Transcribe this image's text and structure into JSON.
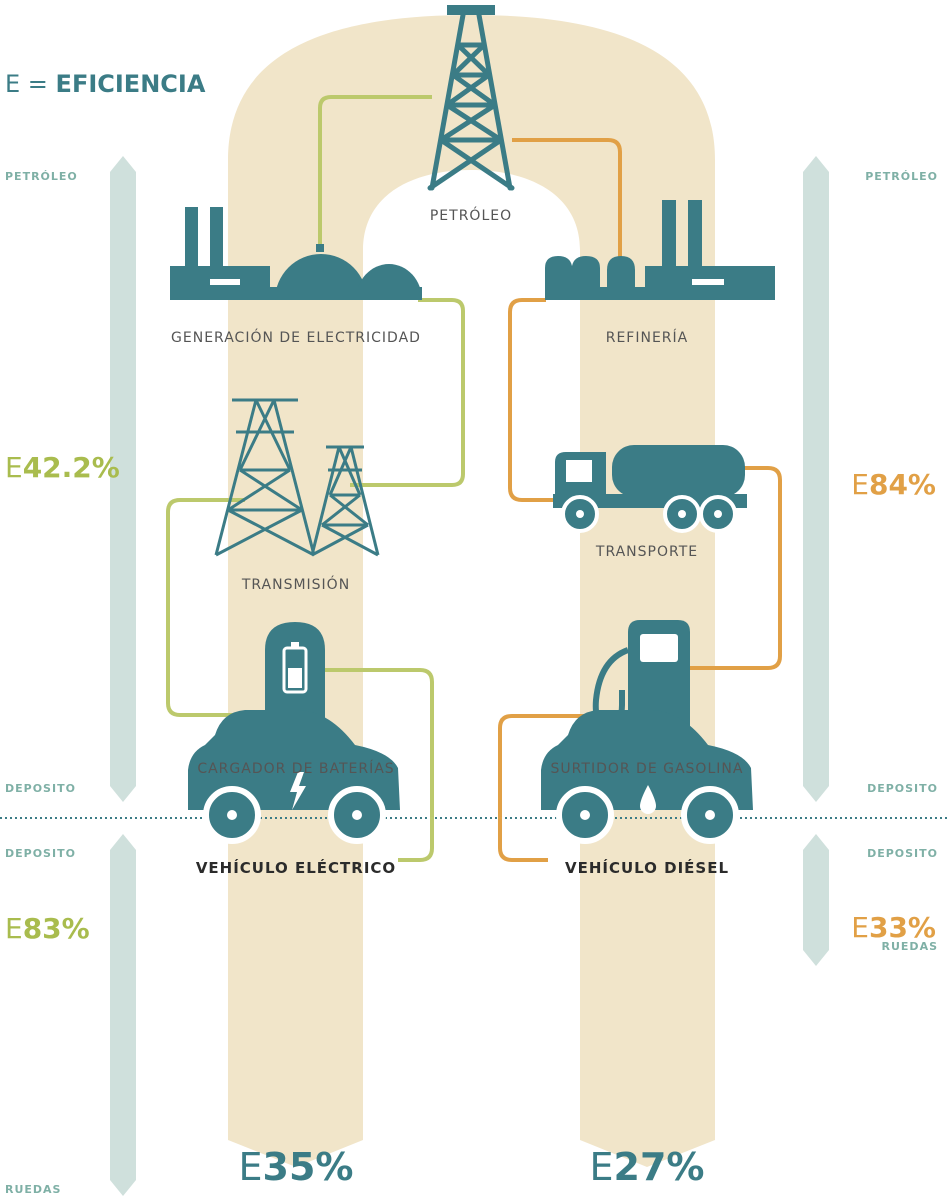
{
  "title": {
    "prefix": "E =",
    "text": "EFICIENCIA"
  },
  "nodes": [
    "PETRÓLEO",
    "GENERACIÓN DE ELECTRICIDAD",
    "REFINERÍA",
    "TRANSMISIÓN",
    "TRANSPORTE",
    "CARGADOR DE BATERÍAS",
    "SURTIDOR DE GASOLINA"
  ],
  "vehicles": [
    {
      "name": "VEHÍCULO ELÉCTRICO",
      "prefix": "E",
      "efficiency": "35%"
    },
    {
      "name": "VEHÍCULO DIÉSEL",
      "prefix": "E",
      "efficiency": "27%"
    }
  ],
  "scales": {
    "left_upper": {
      "top": "PETRÓLEO",
      "bottom": "DEPOSITO",
      "prefix": "E",
      "efficiency": "42.2%"
    },
    "right_upper": {
      "top": "PETRÓLEO",
      "bottom": "DEPOSITO",
      "prefix": "E",
      "efficiency": "84%"
    },
    "left_lower": {
      "top": "DEPOSITO",
      "bottom": "RUEDAS",
      "prefix": "E",
      "efficiency": "83%"
    },
    "right_lower": {
      "top": "DEPOSITO",
      "bottom": "RUEDAS",
      "prefix": "E",
      "efficiency": "33%"
    }
  }
}
